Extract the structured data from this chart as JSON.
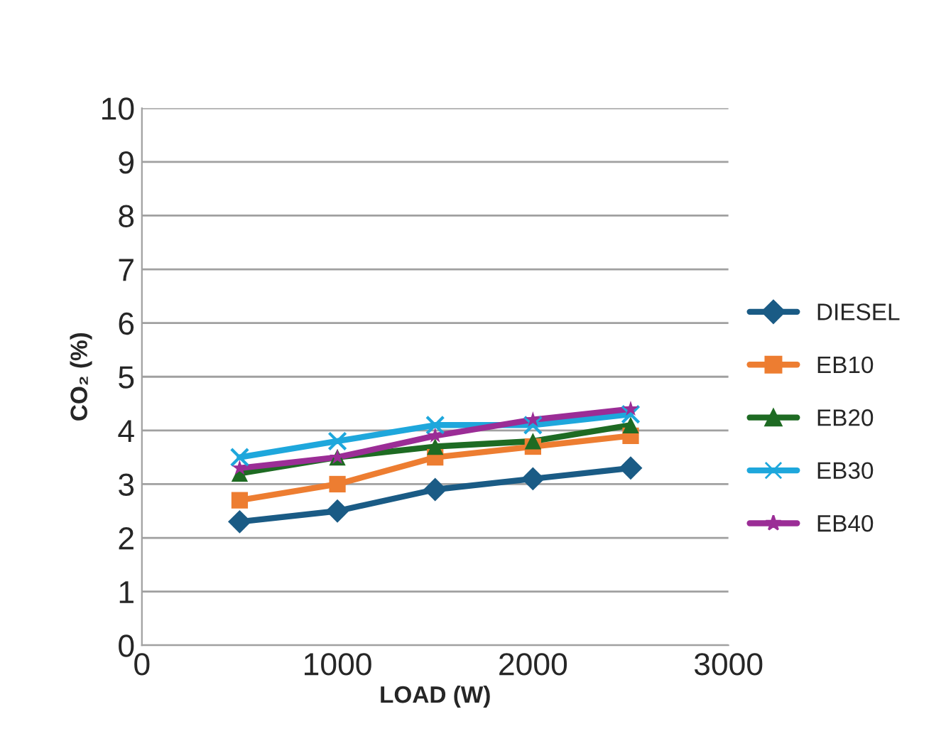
{
  "chart_data": {
    "type": "line",
    "xlabel": "LOAD (W)",
    "ylabel": "CO₂ (%)",
    "x": [
      500,
      1000,
      1500,
      2000,
      2500
    ],
    "series": [
      {
        "name": "DIESEL",
        "color": "#1a5b85",
        "marker": "diamond",
        "values": [
          2.3,
          2.5,
          2.9,
          3.1,
          3.3
        ]
      },
      {
        "name": "EB10",
        "color": "#ed7d31",
        "marker": "square",
        "values": [
          2.7,
          3.0,
          3.5,
          3.7,
          3.9
        ]
      },
      {
        "name": "EB20",
        "color": "#1e6b23",
        "marker": "triangle",
        "values": [
          3.2,
          3.5,
          3.7,
          3.8,
          4.1
        ]
      },
      {
        "name": "EB30",
        "color": "#1ea7dc",
        "marker": "cross",
        "values": [
          3.5,
          3.8,
          4.1,
          4.1,
          4.3
        ]
      },
      {
        "name": "EB40",
        "color": "#9b2d96",
        "marker": "star",
        "values": [
          3.3,
          3.5,
          3.9,
          4.2,
          4.4
        ]
      }
    ],
    "xlim": [
      0,
      3000
    ],
    "xticks": [
      0,
      1000,
      2000,
      3000
    ],
    "ylim": [
      0,
      10
    ],
    "yticks": [
      0,
      1,
      2,
      3,
      4,
      5,
      6,
      7,
      8,
      9,
      10
    ],
    "grid": "y",
    "legend": "right"
  }
}
